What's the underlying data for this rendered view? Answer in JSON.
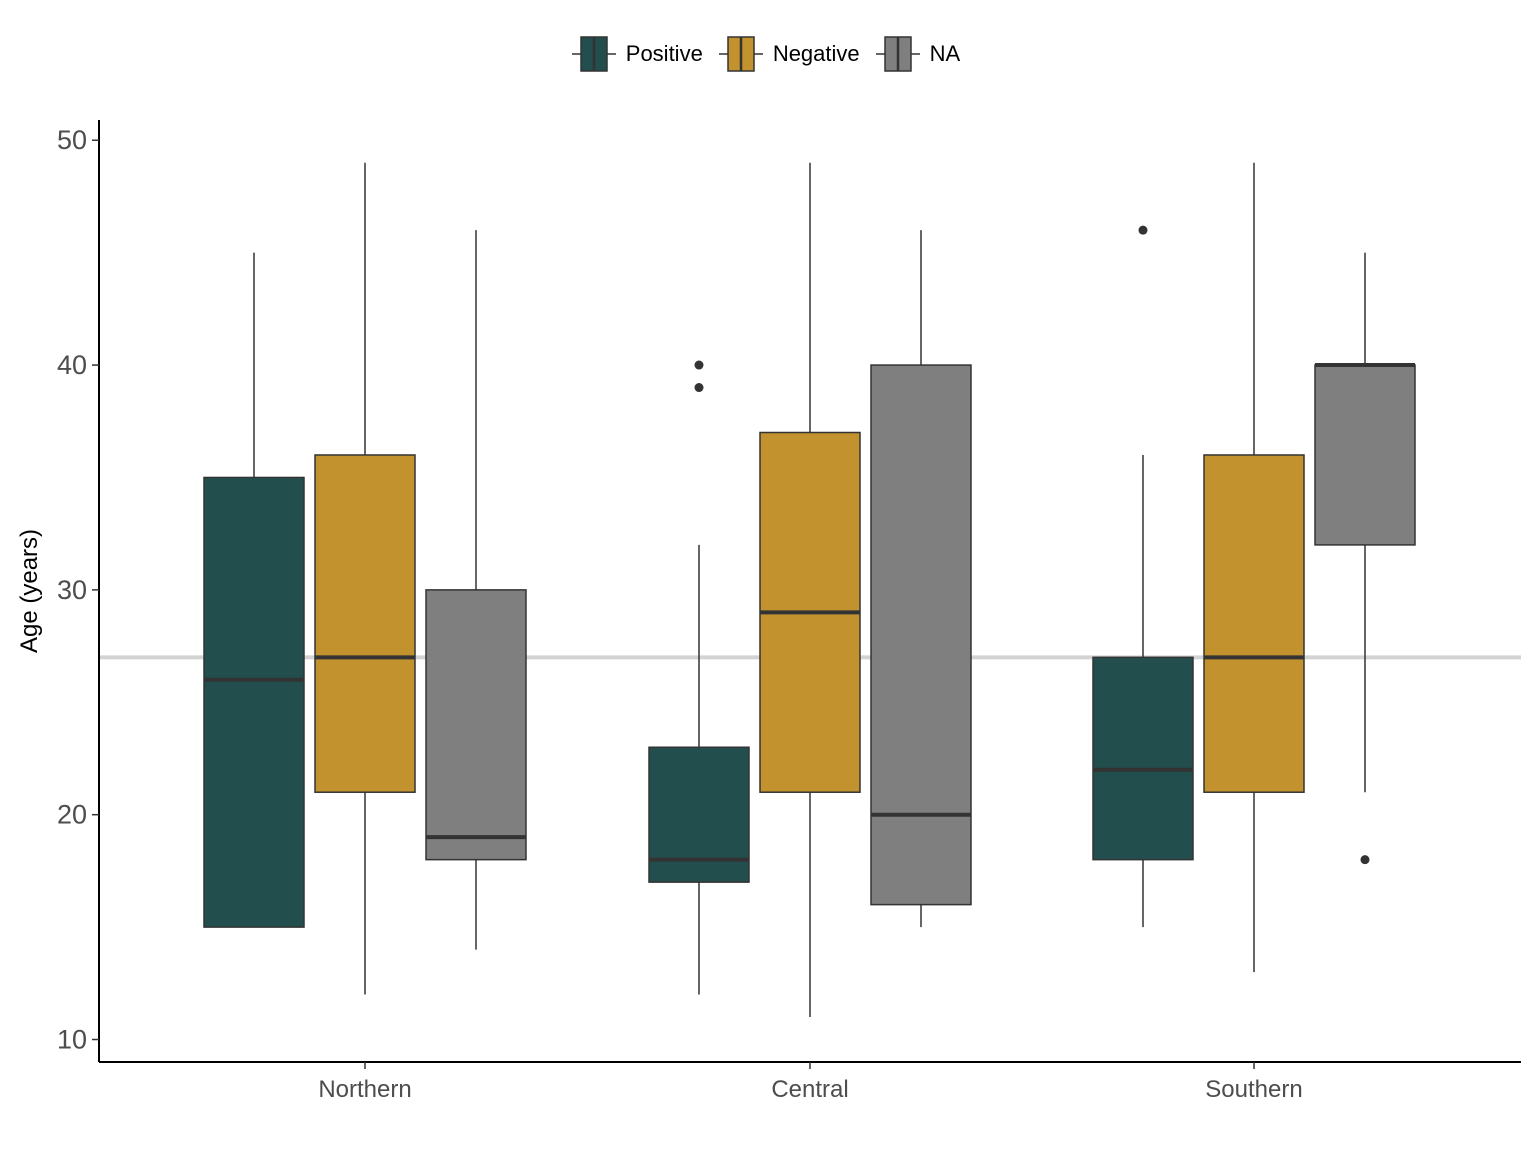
{
  "chart_data": {
    "type": "boxplot",
    "title": "",
    "xlabel": "",
    "ylabel": "Age (years)",
    "ylim": [
      9,
      50.9
    ],
    "yticks": [
      10,
      20,
      30,
      40,
      50
    ],
    "grid": false,
    "legend_position": "top",
    "reference_line": {
      "y": 27,
      "color": "#d3d3d3"
    },
    "categories": [
      "Northern",
      "Central",
      "Southern"
    ],
    "series": [
      {
        "name": "Positive",
        "color": "#224e4d",
        "boxes": [
          {
            "category": "Northern",
            "lower_whisker": 15,
            "q1": 15,
            "median": 26,
            "q3": 35,
            "upper_whisker": 45,
            "outliers": []
          },
          {
            "category": "Central",
            "lower_whisker": 12,
            "q1": 17,
            "median": 18,
            "q3": 23,
            "upper_whisker": 32,
            "outliers": [
              39,
              40
            ]
          },
          {
            "category": "Southern",
            "lower_whisker": 15,
            "q1": 18,
            "median": 22,
            "q3": 27,
            "upper_whisker": 36,
            "outliers": [
              46
            ]
          }
        ]
      },
      {
        "name": "Negative",
        "color": "#c2922e",
        "boxes": [
          {
            "category": "Northern",
            "lower_whisker": 12,
            "q1": 21,
            "median": 27,
            "q3": 36,
            "upper_whisker": 49,
            "outliers": []
          },
          {
            "category": "Central",
            "lower_whisker": 11,
            "q1": 21,
            "median": 29,
            "q3": 37,
            "upper_whisker": 49,
            "outliers": []
          },
          {
            "category": "Southern",
            "lower_whisker": 13,
            "q1": 21,
            "median": 27,
            "q3": 36,
            "upper_whisker": 49,
            "outliers": []
          }
        ]
      },
      {
        "name": "NA",
        "color": "#7f7f7f",
        "boxes": [
          {
            "category": "Northern",
            "lower_whisker": 14,
            "q1": 18,
            "median": 19,
            "q3": 30,
            "upper_whisker": 46,
            "outliers": []
          },
          {
            "category": "Central",
            "lower_whisker": 15,
            "q1": 16,
            "median": 20,
            "q3": 40,
            "upper_whisker": 46,
            "outliers": []
          },
          {
            "category": "Southern",
            "lower_whisker": 21,
            "q1": 32,
            "median": 40,
            "q3": 40,
            "upper_whisker": 45,
            "outliers": [
              18
            ]
          }
        ]
      }
    ]
  }
}
